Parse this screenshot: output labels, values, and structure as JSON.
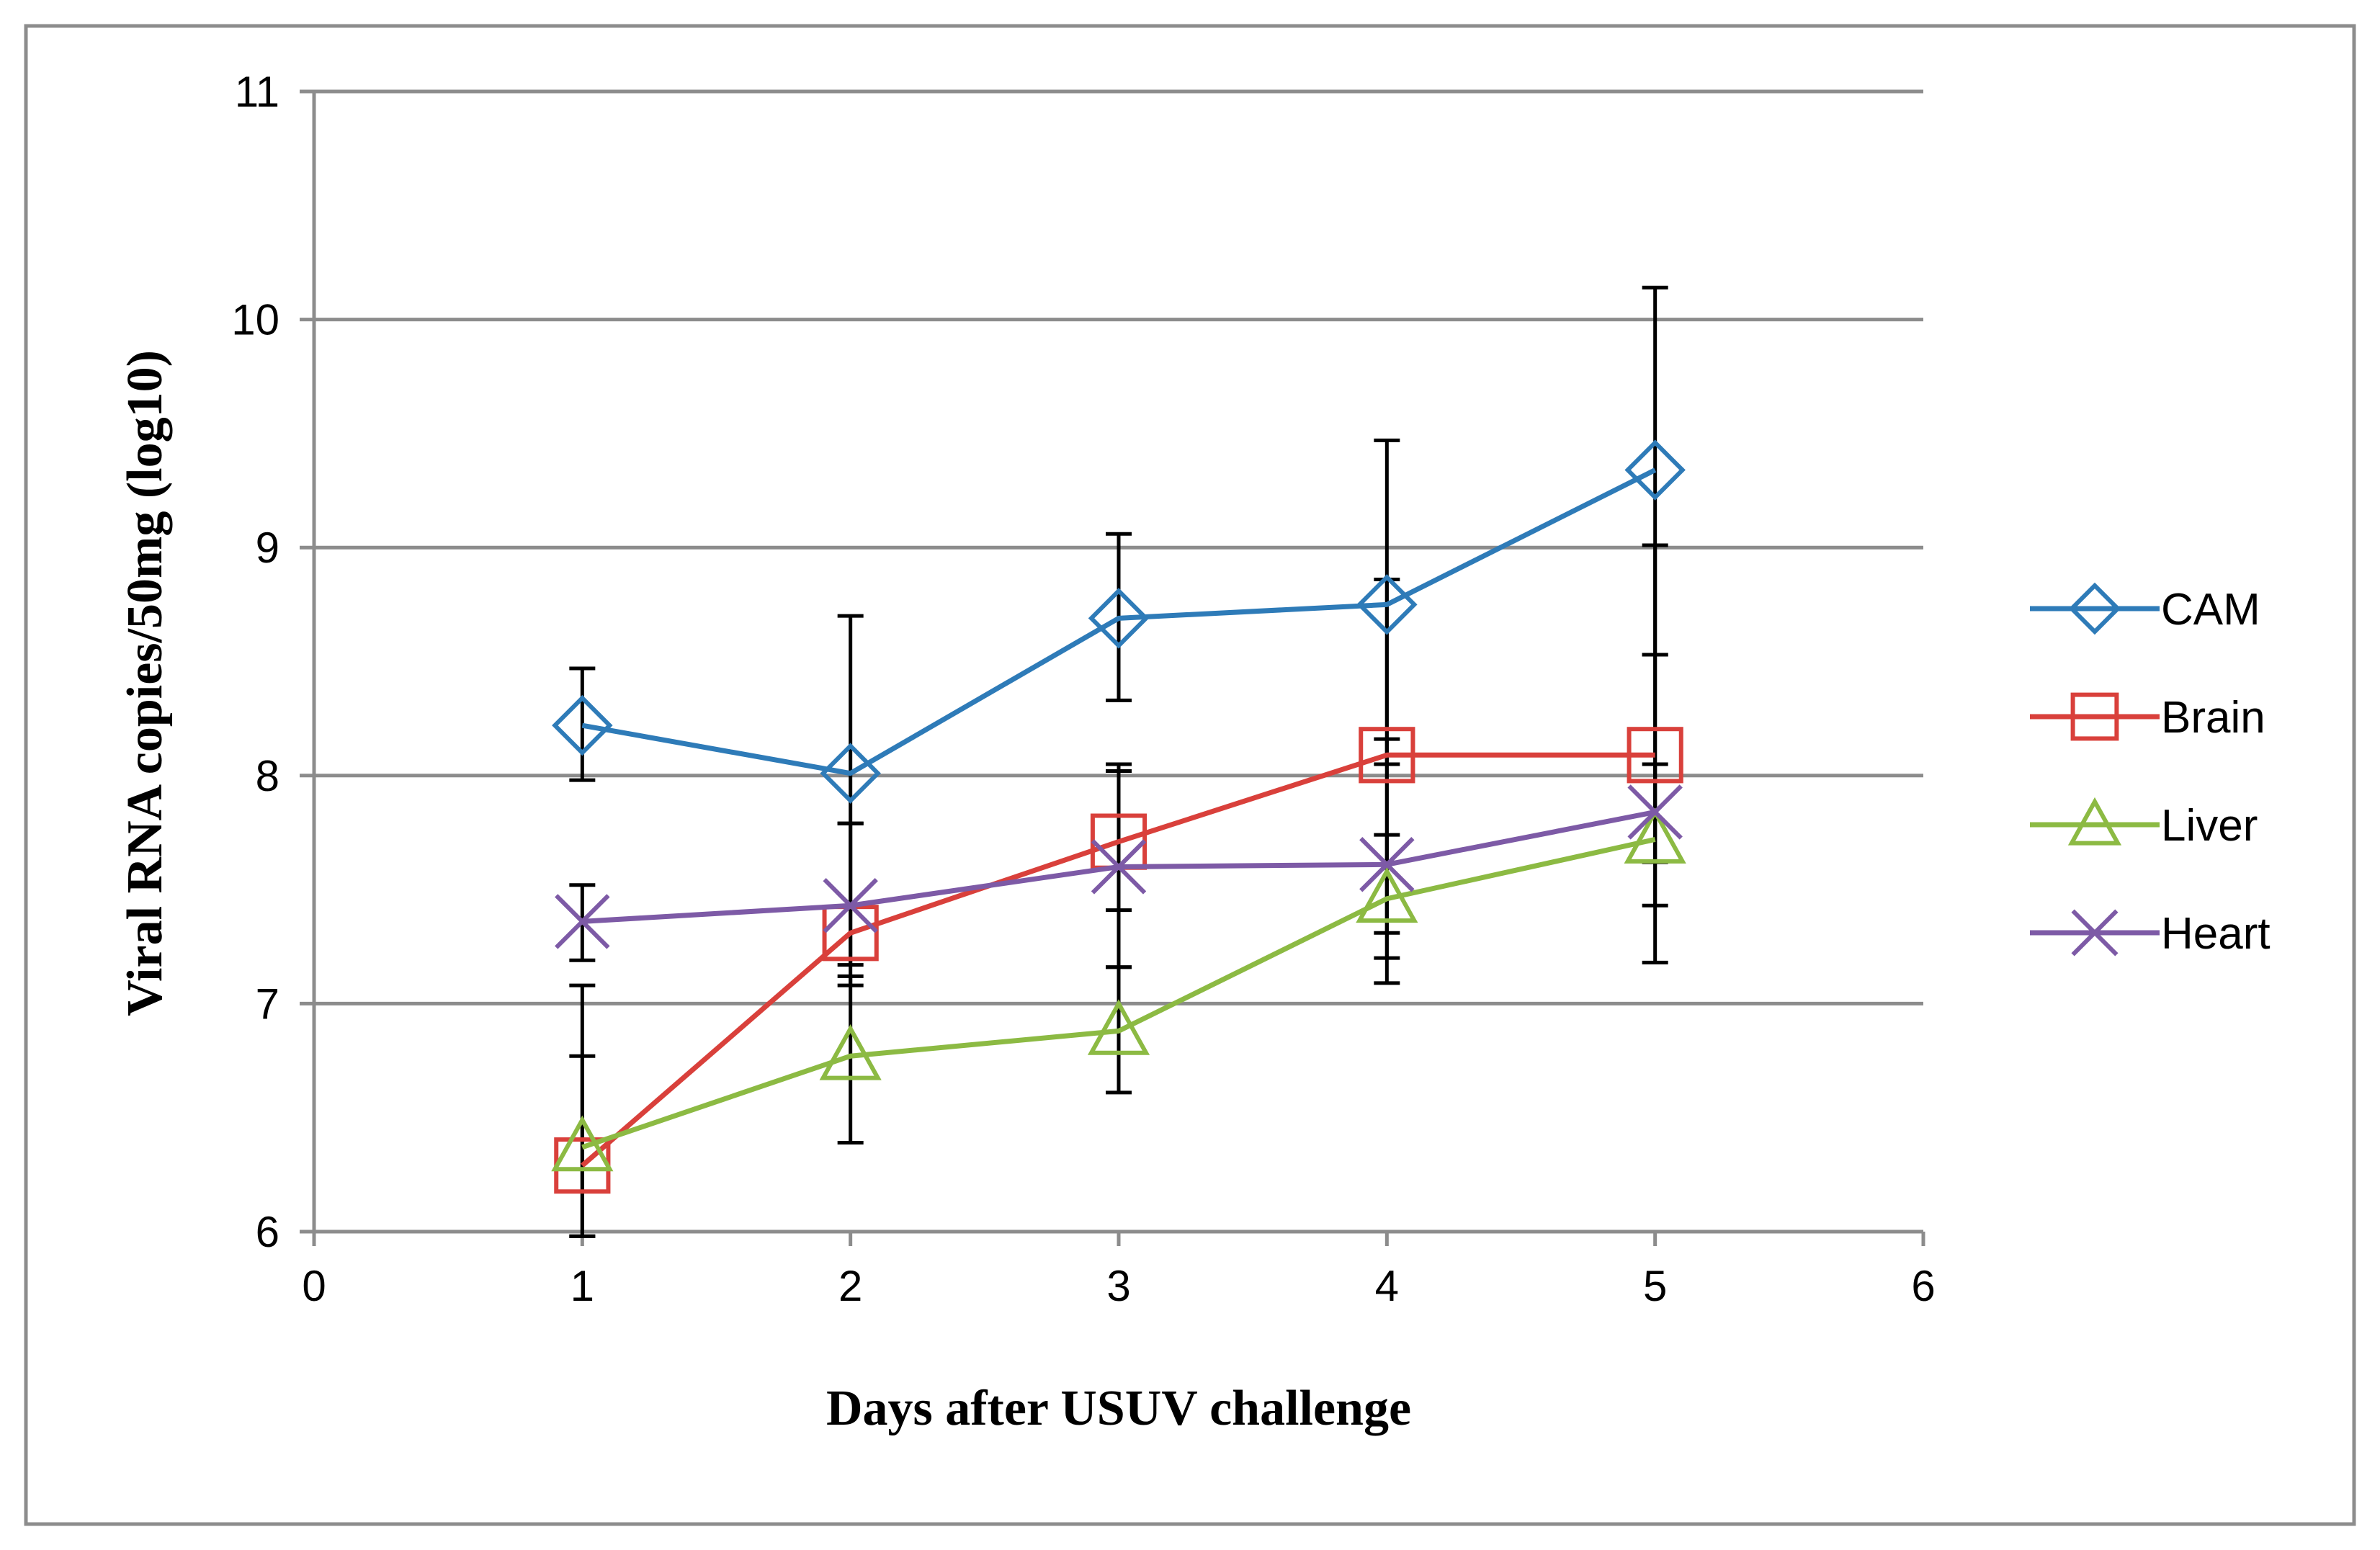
{
  "chart_data": {
    "type": "line",
    "title": "",
    "xlabel": "Days after USUV challenge",
    "ylabel": "Viral RNA copies/50mg (log10)",
    "xlim": [
      0,
      6
    ],
    "ylim": [
      6,
      11
    ],
    "x_ticks": [
      "0",
      "1",
      "2",
      "3",
      "4",
      "5",
      "6"
    ],
    "y_ticks": [
      "6",
      "7",
      "8",
      "9",
      "10",
      "11"
    ],
    "grid": "horizontal",
    "legend_position": "right",
    "x": [
      1,
      2,
      3,
      4,
      5
    ],
    "series": [
      {
        "name": "CAM",
        "color": "#2e7bb8",
        "marker": "diamond",
        "values": [
          8.22,
          8.01,
          8.69,
          8.75,
          9.34
        ],
        "error_low": [
          7.98,
          7.79,
          8.33,
          8.05,
          8.53
        ],
        "error_high": [
          8.47,
          8.7,
          9.06,
          9.47,
          10.14
        ]
      },
      {
        "name": "Brain",
        "color": "#d9403b",
        "marker": "square",
        "values": [
          6.29,
          7.31,
          7.71,
          8.09,
          8.09
        ],
        "error_low": [
          5.98,
          7.08,
          7.41,
          7.2,
          7.18
        ],
        "error_high": [
          6.77,
          7.79,
          8.05,
          8.86,
          9.01
        ]
      },
      {
        "name": "Liver",
        "color": "#8cba43",
        "marker": "triangle",
        "values": [
          6.37,
          6.77,
          6.88,
          7.46,
          7.72
        ],
        "error_low": [
          5.98,
          6.39,
          6.61,
          7.09,
          7.43
        ],
        "error_high": [
          7.08,
          7.12,
          7.16,
          7.74,
          8.05
        ]
      },
      {
        "name": "Heart",
        "color": "#7d5aa6",
        "marker": "x",
        "values": [
          7.36,
          7.43,
          7.6,
          7.61,
          7.84
        ],
        "error_low": [
          7.19,
          7.17,
          7.16,
          7.31,
          7.62
        ],
        "error_high": [
          7.52,
          7.79,
          8.02,
          8.16,
          8.53
        ]
      }
    ]
  }
}
